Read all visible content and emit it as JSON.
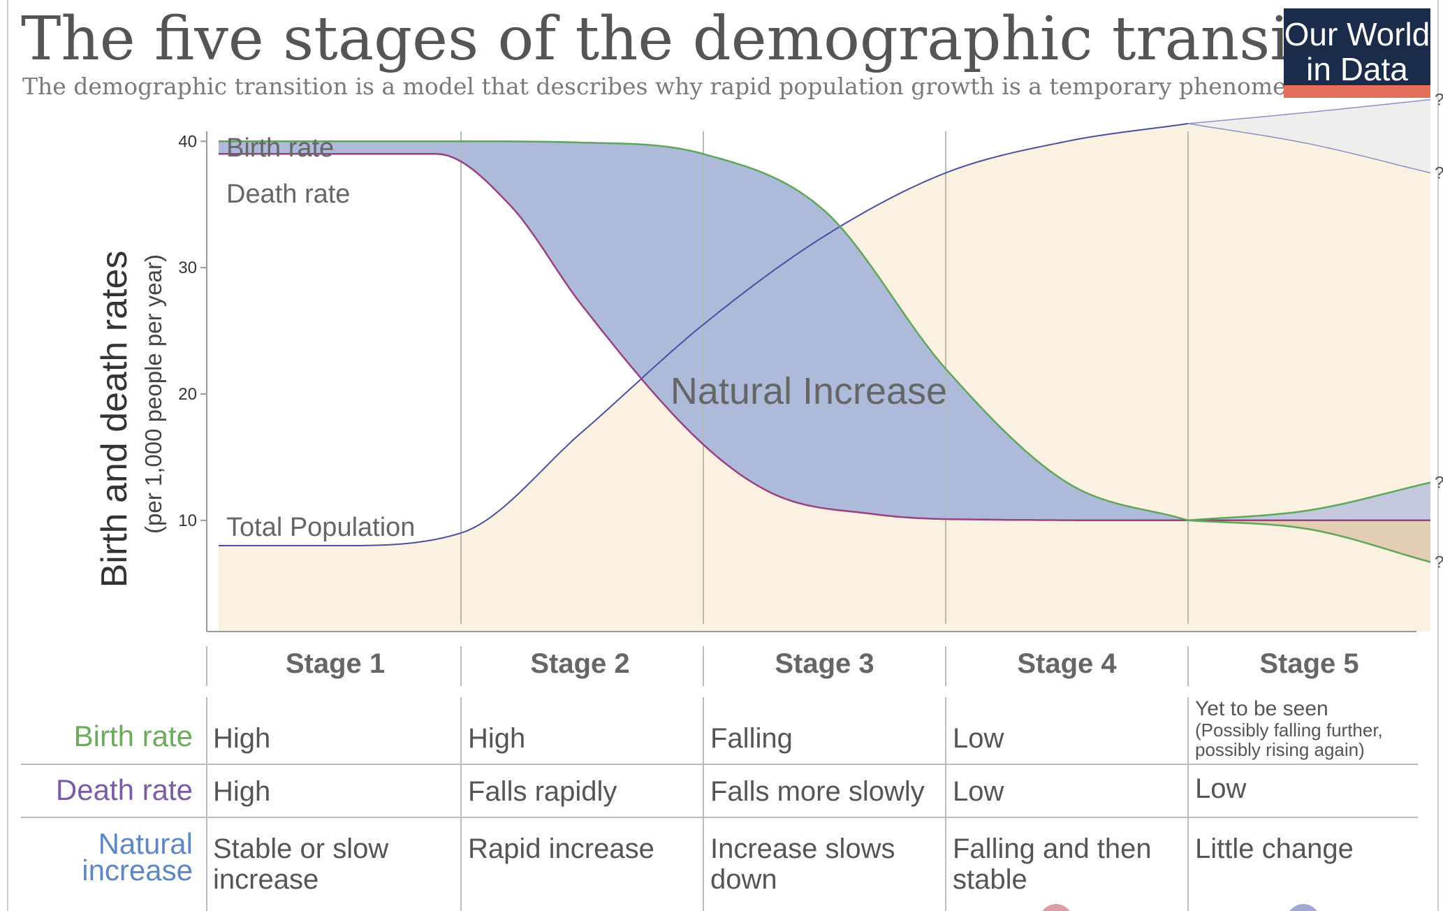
{
  "header": {
    "title": "The five stages of the demographic transition",
    "subtitle": "The demographic transition is a model that describes why rapid population growth is a temporary phenomenon.",
    "logo_line1": "Our World",
    "logo_line2": "in Data",
    "logo_color": "#1b2b4a",
    "logo_accent": "#e56e5a"
  },
  "chart_data": {
    "type": "line",
    "ylabel": "Birth and death rates",
    "ylabel_sub": "(per 1,000 people per year)",
    "yticks": [
      10,
      20,
      30,
      40
    ],
    "ylim": [
      1.2,
      43
    ],
    "xlim": [
      0,
      5
    ],
    "x_unit": "stage",
    "grid": false,
    "colors": {
      "birth": "#5ea65a",
      "death": "#9b3f80",
      "population": "#4a4fa0",
      "natural_increase_fill": "#aab6d8",
      "population_fill": "#faf1e1",
      "uncertain_fill": "#eeeeec",
      "decrease_fill": "#e3cdb5"
    },
    "series": [
      {
        "name": "Birth rate",
        "x": [
          0,
          1,
          1.5,
          2,
          2.5,
          3,
          3.5,
          4
        ],
        "y": [
          40,
          40,
          39.9,
          39,
          34.5,
          22,
          13,
          10
        ]
      },
      {
        "name": "Death rate",
        "x": [
          0,
          0.9,
          1.2,
          1.5,
          2,
          2.3,
          2.7,
          3,
          4,
          5
        ],
        "y": [
          39,
          39,
          35,
          27,
          16,
          12,
          10.5,
          10.1,
          10,
          10
        ]
      },
      {
        "name": "Total Population",
        "x": [
          0,
          0.5,
          1,
          1.5,
          2,
          2.5,
          3,
          3.5,
          4
        ],
        "y": [
          8,
          8,
          9,
          17,
          25.5,
          32.5,
          37.5,
          40,
          41.4
        ]
      }
    ],
    "stage5_scenarios": {
      "birth_high": [
        [
          4,
          10
        ],
        [
          4.5,
          10.8
        ],
        [
          5,
          13
        ]
      ],
      "birth_low": [
        [
          4,
          10
        ],
        [
          4.5,
          9.3
        ],
        [
          5,
          6.7
        ]
      ],
      "population_high": [
        [
          4,
          41.4
        ],
        [
          4.5,
          42.3
        ],
        [
          5,
          43.3
        ]
      ],
      "population_low": [
        [
          4,
          41.4
        ],
        [
          4.5,
          39.8
        ],
        [
          5,
          37.5
        ]
      ],
      "question_mark": "?"
    },
    "annotations": {
      "birth_rate": "Birth rate",
      "death_rate": "Death rate",
      "total_population": "Total Population",
      "natural_increase": "Natural Increase"
    }
  },
  "table": {
    "stages": [
      "Stage 1",
      "Stage 2",
      "Stage 3",
      "Stage 4",
      "Stage 5"
    ],
    "rows": [
      {
        "label": "Birth rate",
        "color": "#6aab5c",
        "cells": [
          "High",
          "High",
          "Falling",
          "Low",
          "Yet to be seen"
        ],
        "note": "(Possibly falling further, possibly rising again)"
      },
      {
        "label": "Death rate",
        "color": "#7d5aa8",
        "cells": [
          "High",
          "Falls rapidly",
          "Falls more slowly",
          "Low",
          "Low"
        ]
      },
      {
        "label_line1": "Natural",
        "label_line2": "increase",
        "color": "#5f86c4",
        "cells_line1": [
          "Stable or slow",
          "Rapid increase",
          "Increase slows",
          "Falling and then",
          "Little change"
        ],
        "cells_line2": [
          "increase",
          "",
          "down",
          "stable",
          ""
        ]
      }
    ]
  }
}
